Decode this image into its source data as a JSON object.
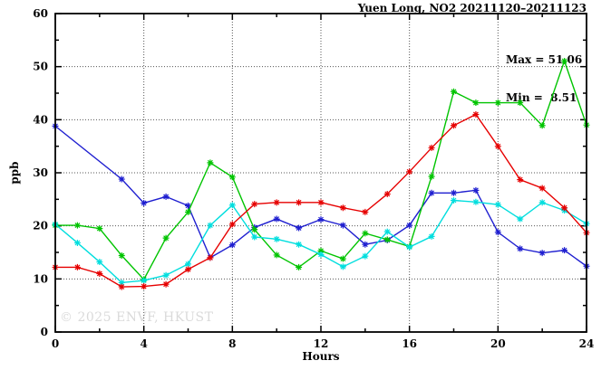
{
  "chart_data": {
    "type": "line",
    "title": "Yuen Long, NO2 20211120–20211123",
    "xlabel": "Hours",
    "ylabel": "ppb",
    "xlim": [
      0,
      24
    ],
    "ylim": [
      0,
      60
    ],
    "x_major_ticks": [
      0,
      4,
      8,
      12,
      16,
      20,
      24
    ],
    "x_minor_step": 2,
    "y_major_ticks": [
      0,
      10,
      20,
      30,
      40,
      50,
      60
    ],
    "y_minor_step": 5,
    "grid": "dotted lines at major ticks, mirrored ticks on all four borders",
    "legend": "none",
    "annotations": {
      "max_label": "Max = 51.06",
      "min_label": "Min =  8.51"
    },
    "watermark": "© 2025 ENVF, HKUST",
    "x": [
      0,
      1,
      2,
      3,
      4,
      5,
      6,
      7,
      8,
      9,
      10,
      11,
      12,
      13,
      14,
      15,
      16,
      17,
      18,
      19,
      20,
      21,
      22,
      23,
      24
    ],
    "series": [
      {
        "name": "blue",
        "color": "#1f1fd0",
        "values": [
          38.8,
          null,
          null,
          28.8,
          24.3,
          25.5,
          23.8,
          14.0,
          16.4,
          19.7,
          21.3,
          19.6,
          21.2,
          20.1,
          16.5,
          17.3,
          20.1,
          26.2,
          26.2,
          26.7,
          18.8,
          15.7,
          14.9,
          15.4,
          12.4
        ]
      },
      {
        "name": "green",
        "color": "#00c400",
        "values": [
          20.1,
          20.1,
          19.5,
          14.4,
          9.9,
          17.7,
          22.6,
          31.9,
          29.2,
          19.3,
          14.5,
          12.2,
          15.3,
          13.8,
          18.6,
          17.4,
          16.1,
          29.3,
          45.3,
          43.2,
          43.2,
          43.2,
          38.9,
          51.06,
          39.0
        ]
      },
      {
        "name": "cyan",
        "color": "#00dede",
        "values": [
          20.3,
          16.8,
          13.2,
          9.3,
          9.7,
          10.7,
          12.8,
          20.1,
          23.9,
          17.9,
          17.5,
          16.5,
          14.6,
          12.3,
          14.3,
          18.9,
          16.0,
          18.0,
          24.8,
          24.5,
          24.0,
          21.3,
          24.4,
          22.9,
          20.4
        ]
      },
      {
        "name": "red",
        "color": "#e60000",
        "values": [
          12.2,
          12.2,
          11.0,
          8.51,
          8.6,
          9.0,
          11.8,
          14.0,
          20.3,
          24.1,
          24.4,
          24.4,
          24.4,
          23.4,
          22.6,
          26.0,
          30.2,
          34.7,
          38.9,
          41.0,
          35.0,
          28.7,
          27.1,
          23.4,
          18.7
        ]
      }
    ]
  }
}
